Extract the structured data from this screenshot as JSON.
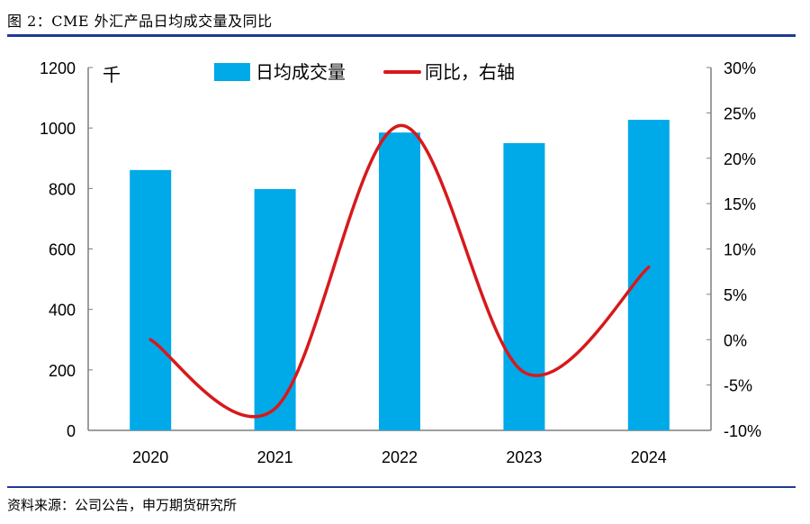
{
  "title": "图 2：CME 外汇产品日均成交量及同比",
  "source": "资料来源：公司公告，申万期货研究所",
  "chart_data": {
    "type": "bar+line",
    "categories": [
      "2020",
      "2021",
      "2022",
      "2023",
      "2024"
    ],
    "left_unit": "千",
    "left_ylim": [
      0,
      1200
    ],
    "left_ticks": [
      "0",
      "200",
      "400",
      "600",
      "800",
      "1000",
      "1200"
    ],
    "right_ylim": [
      -10,
      30
    ],
    "right_ticks": [
      "-10%",
      "-5%",
      "0%",
      "5%",
      "10%",
      "15%",
      "20%",
      "25%",
      "30%"
    ],
    "grid": false,
    "legend_position": "top",
    "series": [
      {
        "name": "日均成交量",
        "type": "bar",
        "axis": "left",
        "color": "#00a9e8",
        "values": [
          861,
          798,
          985,
          950,
          1027
        ]
      },
      {
        "name": "同比，右轴",
        "type": "line",
        "axis": "right",
        "color": "#d7191c",
        "values": [
          0.0,
          -7.6,
          23.6,
          -3.6,
          8.0
        ]
      }
    ]
  }
}
